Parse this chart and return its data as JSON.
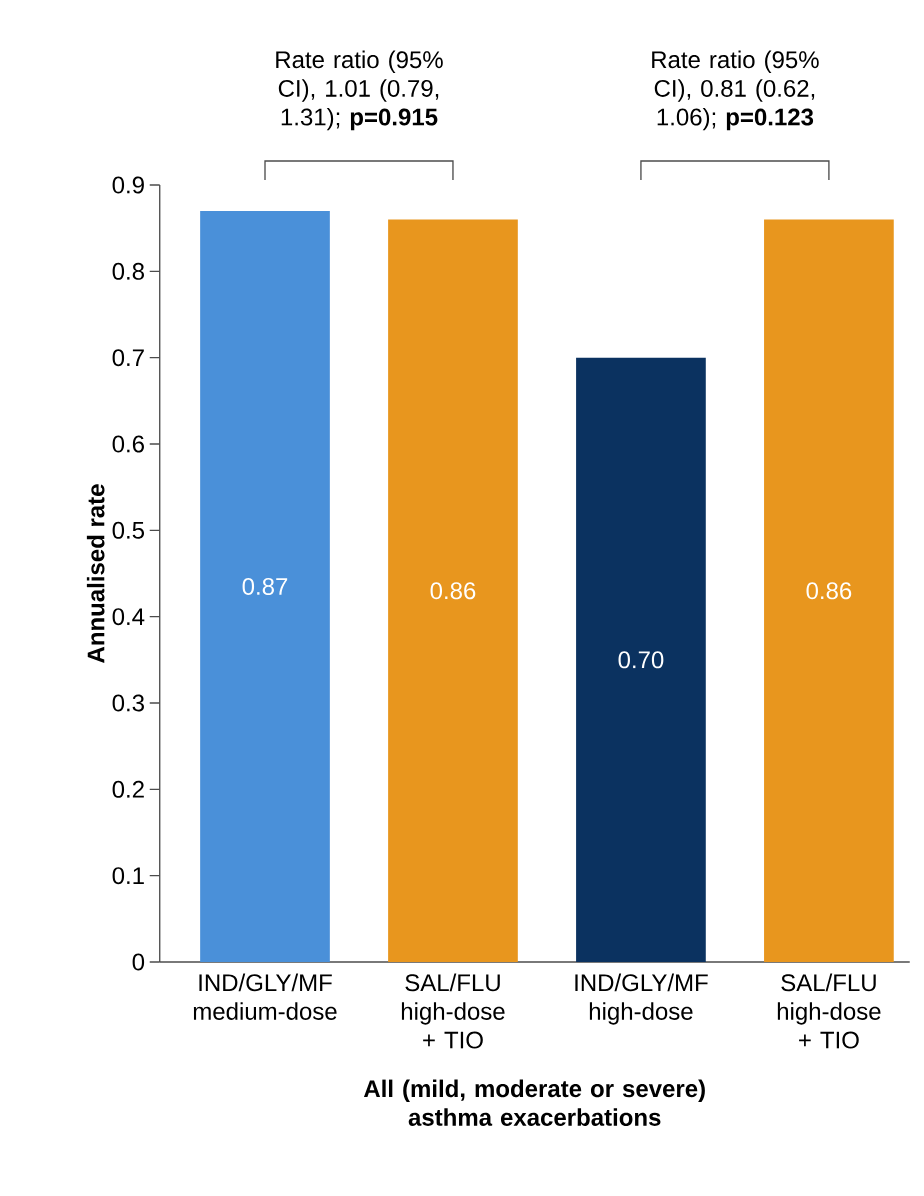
{
  "chart_data": {
    "type": "bar",
    "xlabel": "All (mild, moderate or severe) asthma exacerbations",
    "ylabel": "Annualised rate",
    "categories": [
      "IND/GLY/MF medium-dose",
      "SAL/FLU high-dose + TIO",
      "IND/GLY/MF high-dose",
      "SAL/FLU high-dose + TIO"
    ],
    "values": [
      0.87,
      0.86,
      0.7,
      0.86
    ],
    "colors": [
      "#4a90d9",
      "#e8961e",
      "#0b3260",
      "#e8961e"
    ],
    "value_labels": [
      "0.87",
      "0.86",
      "0.70",
      "0.86"
    ],
    "ylim": [
      0,
      0.9
    ],
    "yticks": [
      0,
      0.1,
      0.2,
      0.3,
      0.4,
      0.5,
      0.6,
      0.7,
      0.8,
      0.9
    ],
    "annotations": [
      "Rate ratio (95% CI), 1.01 (0.79, 1.31); **p=0.915**",
      "Rate ratio (95% CI), 0.81 (0.62, 1.06); **p=0.123**"
    ]
  }
}
